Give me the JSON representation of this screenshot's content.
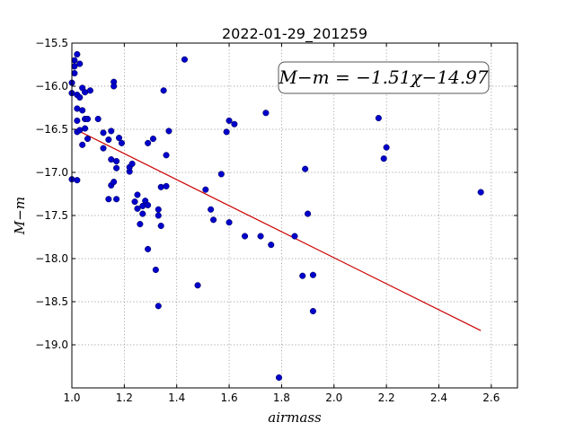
{
  "chart_data": {
    "type": "scatter",
    "title": "2022-01-29_201259",
    "xlabel": "airmass",
    "ylabel": "M−m",
    "xlim": [
      1.0,
      2.7
    ],
    "ylim": [
      -15.5,
      -19.5
    ],
    "y_inverted": true,
    "grid": true,
    "x_ticks": [
      "1.0",
      "1.2",
      "1.4",
      "1.6",
      "1.8",
      "2.0",
      "2.2",
      "2.4",
      "2.6"
    ],
    "y_ticks": [
      "−15.5",
      "−16.0",
      "−16.5",
      "−17.0",
      "−17.5",
      "−18.0",
      "−18.5",
      "−19.0"
    ],
    "annotation": "M−m = −1.51χ−14.97",
    "fit": {
      "slope": -1.51,
      "intercept": -14.97,
      "x_range": [
        1.02,
        2.56
      ],
      "color": "#cc0000"
    },
    "marker_color": "#0000cc",
    "points": [
      {
        "x": 1.0,
        "y": -15.96
      },
      {
        "x": 1.0,
        "y": -16.08
      },
      {
        "x": 1.0,
        "y": -17.08
      },
      {
        "x": 1.01,
        "y": -15.7
      },
      {
        "x": 1.01,
        "y": -15.77
      },
      {
        "x": 1.01,
        "y": -15.85
      },
      {
        "x": 1.02,
        "y": -15.63
      },
      {
        "x": 1.02,
        "y": -16.1
      },
      {
        "x": 1.02,
        "y": -16.26
      },
      {
        "x": 1.02,
        "y": -16.4
      },
      {
        "x": 1.02,
        "y": -16.53
      },
      {
        "x": 1.02,
        "y": -17.09
      },
      {
        "x": 1.03,
        "y": -15.74
      },
      {
        "x": 1.03,
        "y": -16.13
      },
      {
        "x": 1.03,
        "y": -16.51
      },
      {
        "x": 1.04,
        "y": -16.02
      },
      {
        "x": 1.04,
        "y": -16.28
      },
      {
        "x": 1.04,
        "y": -16.68
      },
      {
        "x": 1.05,
        "y": -16.07
      },
      {
        "x": 1.05,
        "y": -16.38
      },
      {
        "x": 1.05,
        "y": -16.49
      },
      {
        "x": 1.06,
        "y": -16.38
      },
      {
        "x": 1.06,
        "y": -16.61
      },
      {
        "x": 1.07,
        "y": -16.05
      },
      {
        "x": 1.1,
        "y": -16.38
      },
      {
        "x": 1.12,
        "y": -16.54
      },
      {
        "x": 1.12,
        "y": -16.72
      },
      {
        "x": 1.14,
        "y": -16.62
      },
      {
        "x": 1.14,
        "y": -17.31
      },
      {
        "x": 1.15,
        "y": -16.52
      },
      {
        "x": 1.15,
        "y": -16.85
      },
      {
        "x": 1.15,
        "y": -17.15
      },
      {
        "x": 1.16,
        "y": -15.95
      },
      {
        "x": 1.16,
        "y": -16.0
      },
      {
        "x": 1.16,
        "y": -17.11
      },
      {
        "x": 1.17,
        "y": -16.87
      },
      {
        "x": 1.17,
        "y": -16.95
      },
      {
        "x": 1.17,
        "y": -17.31
      },
      {
        "x": 1.18,
        "y": -16.6
      },
      {
        "x": 1.19,
        "y": -16.66
      },
      {
        "x": 1.22,
        "y": -16.99
      },
      {
        "x": 1.22,
        "y": -16.94
      },
      {
        "x": 1.23,
        "y": -16.9
      },
      {
        "x": 1.24,
        "y": -17.34
      },
      {
        "x": 1.25,
        "y": -17.26
      },
      {
        "x": 1.25,
        "y": -17.42
      },
      {
        "x": 1.26,
        "y": -17.6
      },
      {
        "x": 1.27,
        "y": -17.39
      },
      {
        "x": 1.27,
        "y": -17.48
      },
      {
        "x": 1.28,
        "y": -17.33
      },
      {
        "x": 1.29,
        "y": -16.66
      },
      {
        "x": 1.29,
        "y": -17.38
      },
      {
        "x": 1.29,
        "y": -17.89
      },
      {
        "x": 1.31,
        "y": -16.61
      },
      {
        "x": 1.32,
        "y": -18.13
      },
      {
        "x": 1.33,
        "y": -17.43
      },
      {
        "x": 1.33,
        "y": -17.5
      },
      {
        "x": 1.33,
        "y": -18.55
      },
      {
        "x": 1.34,
        "y": -17.17
      },
      {
        "x": 1.34,
        "y": -17.62
      },
      {
        "x": 1.35,
        "y": -16.05
      },
      {
        "x": 1.36,
        "y": -16.8
      },
      {
        "x": 1.36,
        "y": -17.16
      },
      {
        "x": 1.37,
        "y": -16.52
      },
      {
        "x": 1.43,
        "y": -15.69
      },
      {
        "x": 1.48,
        "y": -18.31
      },
      {
        "x": 1.51,
        "y": -17.2
      },
      {
        "x": 1.53,
        "y": -17.43
      },
      {
        "x": 1.54,
        "y": -17.55
      },
      {
        "x": 1.57,
        "y": -17.02
      },
      {
        "x": 1.59,
        "y": -16.53
      },
      {
        "x": 1.6,
        "y": -16.4
      },
      {
        "x": 1.6,
        "y": -17.58
      },
      {
        "x": 1.62,
        "y": -16.44
      },
      {
        "x": 1.66,
        "y": -17.74
      },
      {
        "x": 1.72,
        "y": -17.74
      },
      {
        "x": 1.74,
        "y": -16.31
      },
      {
        "x": 1.76,
        "y": -17.84
      },
      {
        "x": 1.79,
        "y": -19.38
      },
      {
        "x": 1.85,
        "y": -17.74
      },
      {
        "x": 1.88,
        "y": -18.2
      },
      {
        "x": 1.89,
        "y": -16.96
      },
      {
        "x": 1.9,
        "y": -17.48
      },
      {
        "x": 1.92,
        "y": -18.19
      },
      {
        "x": 1.92,
        "y": -18.61
      },
      {
        "x": 2.17,
        "y": -16.37
      },
      {
        "x": 2.19,
        "y": -16.84
      },
      {
        "x": 2.2,
        "y": -16.71
      },
      {
        "x": 2.56,
        "y": -17.23
      }
    ]
  }
}
